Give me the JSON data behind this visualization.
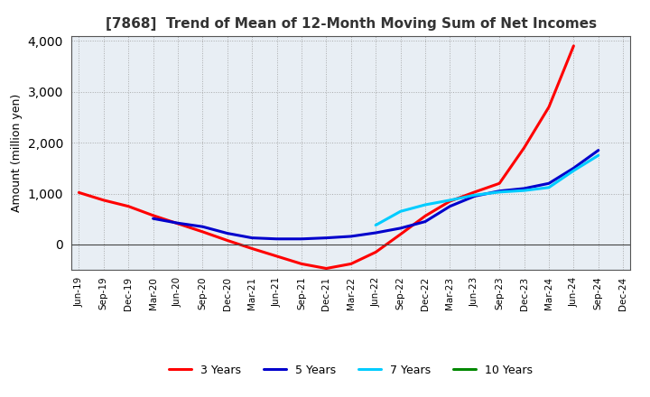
{
  "title": "[7868]  Trend of Mean of 12-Month Moving Sum of Net Incomes",
  "ylabel": "Amount (million yen)",
  "ylim": [
    -500,
    4100
  ],
  "background_color": "#ffffff",
  "plot_bg_color": "#e8eef4",
  "grid_color": "#999999",
  "series": {
    "3 Years": {
      "color": "#ff0000",
      "values": [
        1020,
        870,
        750,
        570,
        410,
        250,
        80,
        -80,
        -230,
        -380,
        -470,
        -380,
        -150,
        200,
        560,
        850,
        1030,
        1200,
        1900,
        2700,
        3900,
        null,
        null
      ]
    },
    "5 Years": {
      "color": "#0000cc",
      "values": [
        null,
        null,
        null,
        510,
        420,
        350,
        220,
        130,
        110,
        110,
        130,
        160,
        230,
        320,
        450,
        750,
        950,
        1050,
        1100,
        1200,
        1500,
        1850,
        null
      ]
    },
    "7 Years": {
      "color": "#00ccff",
      "values": [
        null,
        null,
        null,
        null,
        null,
        null,
        null,
        null,
        null,
        null,
        null,
        null,
        380,
        650,
        780,
        870,
        970,
        1030,
        1060,
        1120,
        1450,
        1750,
        null
      ]
    },
    "10 Years": {
      "color": "#008800",
      "values": [
        null,
        null,
        null,
        null,
        null,
        null,
        null,
        null,
        null,
        null,
        null,
        null,
        null,
        null,
        null,
        null,
        null,
        null,
        null,
        null,
        null,
        null,
        null
      ]
    }
  },
  "xtick_labels": [
    "Jun-19",
    "Sep-19",
    "Dec-19",
    "Mar-20",
    "Jun-20",
    "Sep-20",
    "Dec-20",
    "Mar-21",
    "Jun-21",
    "Sep-21",
    "Dec-21",
    "Mar-22",
    "Jun-22",
    "Sep-22",
    "Dec-22",
    "Mar-23",
    "Jun-23",
    "Sep-23",
    "Dec-23",
    "Mar-24",
    "Jun-24",
    "Sep-24",
    "Dec-24"
  ],
  "legend_entries": [
    "3 Years",
    "5 Years",
    "7 Years",
    "10 Years"
  ],
  "linewidth": 2.2
}
